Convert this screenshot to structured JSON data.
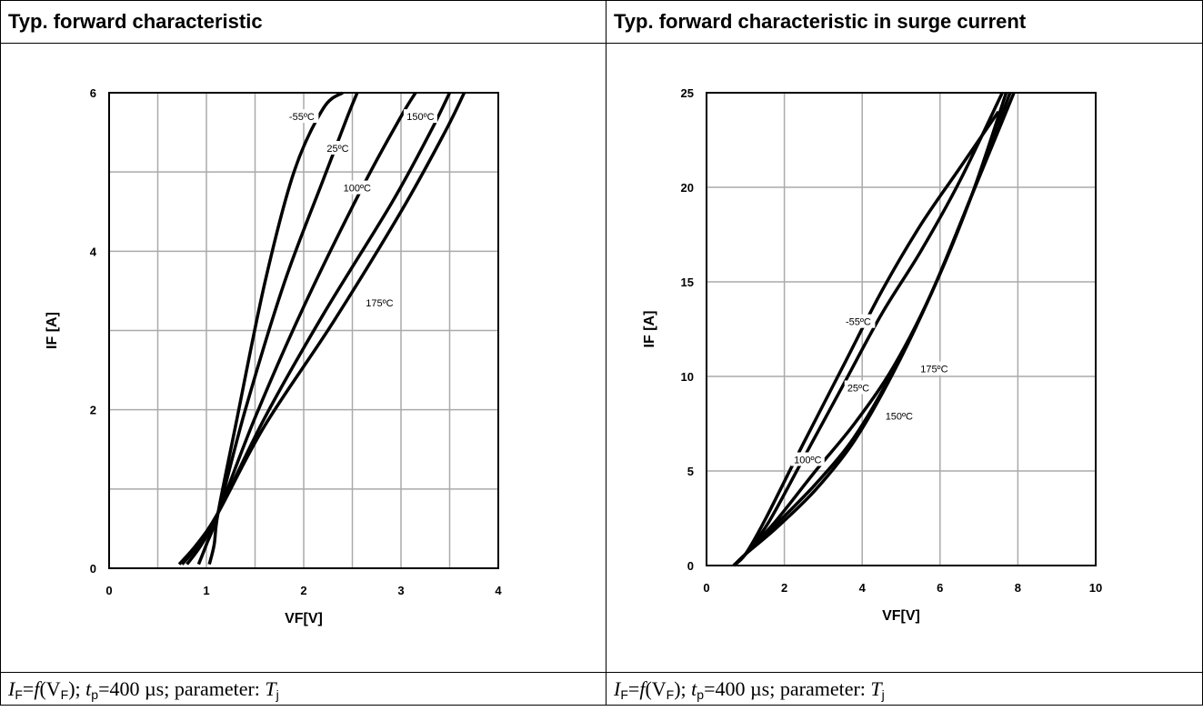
{
  "panels": [
    {
      "title": "Typ. forward characteristic",
      "caption": {
        "I": "I",
        "I_sub": "F",
        "eq1": "=",
        "f": "f",
        "paren_open": "(V",
        "V_sub": "F",
        "rest1": "); ",
        "t": "t",
        "t_sub": "p",
        "rest2": "=400 µs; parameter: ",
        "T": "T",
        "T_sub": "j"
      }
    },
    {
      "title": "Typ.  forward characteristic in surge current",
      "caption": {
        "I": "I",
        "I_sub": "F",
        "eq1": "=",
        "f": "f",
        "paren_open": "(V",
        "V_sub": "F",
        "rest1": "); ",
        "t": "t",
        "t_sub": "p",
        "rest2": "=400 µs; parameter: ",
        "T": "T",
        "T_sub": "j"
      }
    }
  ],
  "chart_data": [
    {
      "type": "line",
      "title": "Typ. forward characteristic",
      "xlabel": "VF[V]",
      "ylabel": "IF [A]",
      "xlim": [
        0,
        4
      ],
      "ylim": [
        0,
        6
      ],
      "x_ticks": [
        "0",
        "1",
        "2",
        "3",
        "4"
      ],
      "y_ticks": [
        "0",
        "2",
        "4",
        "6"
      ],
      "grid": true,
      "series": [
        {
          "name": "-55ºC",
          "x": [
            1.03,
            1.08,
            1.12,
            1.3,
            1.6,
            1.9,
            2.2,
            2.4
          ],
          "y": [
            0.05,
            0.3,
            0.7,
            1.8,
            3.6,
            5.0,
            5.8,
            6.0
          ]
        },
        {
          "name": "25ºC",
          "x": [
            0.92,
            1.0,
            1.12,
            1.4,
            1.8,
            2.2,
            2.45,
            2.55
          ],
          "y": [
            0.05,
            0.3,
            0.7,
            2.0,
            3.6,
            4.9,
            5.7,
            6.0
          ]
        },
        {
          "name": "100ºC",
          "x": [
            0.8,
            0.95,
            1.12,
            1.5,
            2.0,
            2.6,
            3.0,
            3.15
          ],
          "y": [
            0.05,
            0.3,
            0.7,
            1.9,
            3.3,
            4.8,
            5.7,
            6.0
          ]
        },
        {
          "name": "150ºC",
          "x": [
            0.75,
            0.92,
            1.12,
            1.6,
            2.2,
            2.9,
            3.3,
            3.5
          ],
          "y": [
            0.05,
            0.3,
            0.7,
            1.9,
            3.2,
            4.6,
            5.5,
            6.0
          ]
        },
        {
          "name": "175ºC",
          "x": [
            0.72,
            0.9,
            1.12,
            1.6,
            2.3,
            3.0,
            3.45,
            3.65
          ],
          "y": [
            0.05,
            0.3,
            0.7,
            1.8,
            3.1,
            4.5,
            5.5,
            6.0
          ]
        }
      ],
      "annotations": [
        {
          "text": "-55ºC",
          "x": 1.98,
          "y": 5.7
        },
        {
          "text": "25ºC",
          "x": 2.35,
          "y": 5.3
        },
        {
          "text": "100ºC",
          "x": 2.55,
          "y": 4.8
        },
        {
          "text": "150ºC",
          "x": 3.2,
          "y": 5.7
        },
        {
          "text": "175ºC",
          "x": 2.78,
          "y": 3.35
        }
      ]
    },
    {
      "type": "line",
      "title": "Typ.  forward characteristic in surge current",
      "xlabel": "VF[V]",
      "ylabel": "IF [A]",
      "xlim": [
        0,
        10
      ],
      "ylim": [
        0,
        25
      ],
      "x_ticks": [
        "0",
        "2",
        "4",
        "6",
        "8",
        "10"
      ],
      "y_ticks": [
        "0",
        "5",
        "10",
        "15",
        "20",
        "25"
      ],
      "grid": true,
      "series": [
        {
          "name": "-55ºC",
          "x": [
            0.7,
            1.0,
            1.5,
            2.5,
            3.5,
            4.5,
            5.5,
            6.5,
            7.5
          ],
          "y": [
            0,
            0.6,
            2.4,
            6.5,
            10.5,
            14.5,
            18.0,
            21.0,
            24.0
          ]
        },
        {
          "name": "25ºC",
          "x": [
            0.7,
            1.0,
            1.6,
            2.5,
            3.5,
            4.5,
            5.5,
            6.5,
            7.6
          ],
          "y": [
            0,
            0.6,
            2.3,
            5.7,
            9.5,
            13.3,
            16.6,
            20.3,
            25.0
          ]
        },
        {
          "name": "100ºC",
          "x": [
            0.7,
            1.0,
            1.8,
            2.8,
            3.8,
            4.8,
            5.8,
            6.8,
            7.7
          ],
          "y": [
            0,
            0.6,
            2.4,
            5.0,
            7.5,
            10.5,
            14.5,
            19.5,
            25.0
          ]
        },
        {
          "name": "150ºC",
          "x": [
            0.7,
            1.0,
            1.8,
            2.8,
            3.8,
            4.8,
            5.8,
            6.8,
            7.8
          ],
          "y": [
            0,
            0.6,
            2.2,
            4.3,
            6.8,
            10.3,
            14.5,
            19.5,
            25.0
          ]
        },
        {
          "name": "175ºC",
          "x": [
            0.7,
            1.0,
            1.8,
            2.8,
            3.8,
            4.8,
            5.8,
            6.8,
            7.9
          ],
          "y": [
            0,
            0.6,
            2.0,
            4.0,
            6.6,
            10.2,
            14.5,
            19.5,
            25.0
          ]
        }
      ],
      "annotations": [
        {
          "text": "-55ºC",
          "x": 3.9,
          "y": 12.9
        },
        {
          "text": "25ºC",
          "x": 3.9,
          "y": 9.4
        },
        {
          "text": "100ºC",
          "x": 2.6,
          "y": 5.6
        },
        {
          "text": "150ºC",
          "x": 4.95,
          "y": 7.9
        },
        {
          "text": "175ºC",
          "x": 5.85,
          "y": 10.4
        }
      ]
    }
  ]
}
